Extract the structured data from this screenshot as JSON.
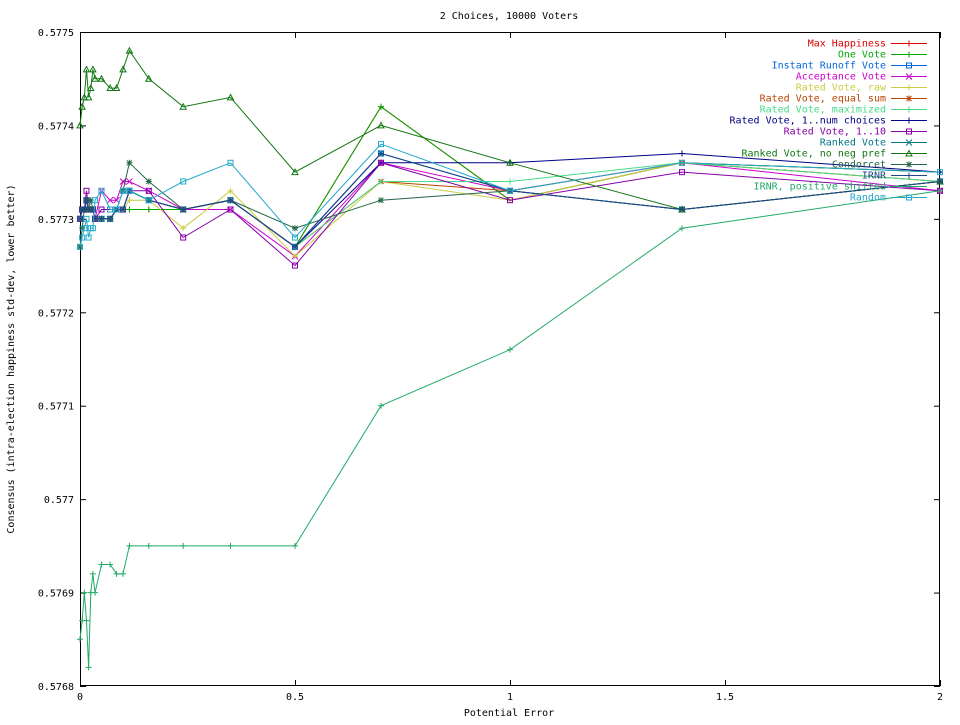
{
  "chart_data": {
    "type": "line",
    "title": "2 Choices, 10000 Voters",
    "xlabel": "Potential Error",
    "ylabel": "Consensus (intra-election happiness std-dev, lower better)",
    "xlim": [
      0,
      2
    ],
    "ylim": [
      0.5768,
      0.5775
    ],
    "x_ticks": [
      0,
      0.5,
      1,
      1.5,
      2
    ],
    "x_tick_labels": [
      "0",
      "0.5",
      "1",
      "1.5",
      "2"
    ],
    "y_ticks": [
      0.5768,
      0.5769,
      0.577,
      0.5771,
      0.5772,
      0.5773,
      0.5774,
      0.5775
    ],
    "y_tick_labels": [
      "0.5768",
      "0.5769",
      "0.577",
      "0.5771",
      "0.5772",
      "0.5773",
      "0.5774",
      "0.5775"
    ],
    "grid": false,
    "legend_position": "top-right",
    "x": [
      0,
      0.005,
      0.01,
      0.015,
      0.02,
      0.025,
      0.03,
      0.035,
      0.05,
      0.07,
      0.085,
      0.1,
      0.115,
      0.16,
      0.24,
      0.35,
      0.5,
      0.7,
      1.0,
      1.4,
      2.0
    ],
    "series": [
      {
        "name": "Max Happiness",
        "color": "#dd0000",
        "marker": "plus",
        "values": [
          0.5773,
          0.57731,
          0.57731,
          0.57732,
          0.57731,
          0.57731,
          0.57731,
          0.5773,
          0.5773,
          0.5773,
          0.57731,
          0.57731,
          0.57731,
          0.57731,
          0.57731,
          0.57732,
          0.57727,
          0.57742,
          0.57732,
          0.57736,
          0.57735
        ]
      },
      {
        "name": "One Vote",
        "color": "#00aa00",
        "marker": "plus",
        "values": [
          0.5773,
          0.57731,
          0.57731,
          0.57732,
          0.57731,
          0.57731,
          0.57731,
          0.5773,
          0.5773,
          0.5773,
          0.57731,
          0.57731,
          0.57731,
          0.57731,
          0.57731,
          0.57732,
          0.57727,
          0.57742,
          0.57732,
          0.57736,
          0.57735
        ]
      },
      {
        "name": "Instant Runoff Vote",
        "color": "#0066dd",
        "marker": "square",
        "values": [
          0.5773,
          0.57731,
          0.57731,
          0.57732,
          0.57731,
          0.57731,
          0.57731,
          0.5773,
          0.5773,
          0.5773,
          0.57731,
          0.57731,
          0.57733,
          0.57732,
          0.57731,
          0.57732,
          0.57727,
          0.57737,
          0.57733,
          0.57731,
          0.57734
        ]
      },
      {
        "name": "Acceptance Vote",
        "color": "#cc00cc",
        "marker": "cross",
        "values": [
          0.5773,
          0.57731,
          0.57731,
          0.57732,
          0.57731,
          0.57731,
          0.57731,
          0.5773,
          0.57733,
          0.57732,
          0.57732,
          0.57734,
          0.57734,
          0.57733,
          0.57731,
          0.57731,
          0.57726,
          0.57736,
          0.57733,
          0.57736,
          0.57733
        ]
      },
      {
        "name": "Rated Vote, raw",
        "color": "#cccc44",
        "marker": "plus",
        "values": [
          0.5773,
          0.57731,
          0.57731,
          0.57732,
          0.57731,
          0.57731,
          0.57731,
          0.5773,
          0.5773,
          0.5773,
          0.57731,
          0.57731,
          0.57732,
          0.57732,
          0.57729,
          0.57733,
          0.57726,
          0.57734,
          0.57732,
          0.57736,
          0.57734
        ]
      },
      {
        "name": "Rated Vote, equal sum",
        "color": "#bb4400",
        "marker": "star",
        "values": [
          0.5773,
          0.57731,
          0.57731,
          0.57732,
          0.57731,
          0.57731,
          0.57731,
          0.5773,
          0.5773,
          0.5773,
          0.57731,
          0.57731,
          0.57733,
          0.57732,
          0.57731,
          0.57732,
          0.57727,
          0.57734,
          0.57733,
          0.57736,
          0.57734
        ]
      },
      {
        "name": "Rated Vote, maximized",
        "color": "#44dd88",
        "marker": "plus",
        "values": [
          0.5773,
          0.57731,
          0.57731,
          0.57732,
          0.57731,
          0.57731,
          0.57731,
          0.5773,
          0.5773,
          0.5773,
          0.57731,
          0.57731,
          0.57733,
          0.57732,
          0.57731,
          0.57732,
          0.57727,
          0.57734,
          0.57734,
          0.57736,
          0.57734
        ]
      },
      {
        "name": "Rated Vote, 1..num choices",
        "color": "#000088",
        "marker": "plus",
        "values": [
          0.5773,
          0.57731,
          0.57731,
          0.57732,
          0.57731,
          0.57731,
          0.57731,
          0.5773,
          0.5773,
          0.5773,
          0.57731,
          0.57731,
          0.57733,
          0.57732,
          0.57731,
          0.57732,
          0.57727,
          0.57736,
          0.57736,
          0.57737,
          0.57735
        ]
      },
      {
        "name": "Rated Vote, 1..10",
        "color": "#8800aa",
        "marker": "square",
        "values": [
          0.5773,
          0.57731,
          0.57731,
          0.57733,
          0.57731,
          0.57731,
          0.57731,
          0.5773,
          0.57731,
          0.57731,
          0.57731,
          0.57731,
          0.57733,
          0.57733,
          0.57728,
          0.57731,
          0.57725,
          0.57736,
          0.57732,
          0.57735,
          0.57733
        ]
      },
      {
        "name": "Ranked Vote",
        "color": "#007788",
        "marker": "cross",
        "values": [
          0.5773,
          0.57731,
          0.57731,
          0.57732,
          0.57731,
          0.57731,
          0.57731,
          0.5773,
          0.5773,
          0.5773,
          0.57731,
          0.57731,
          0.57733,
          0.57732,
          0.57731,
          0.57732,
          0.57727,
          0.57737,
          0.57733,
          0.57731,
          0.57734
        ]
      },
      {
        "name": "Ranked Vote, no neg pref",
        "color": "#117711",
        "marker": "triangle",
        "values": [
          0.5774,
          0.57742,
          0.57743,
          0.57746,
          0.57743,
          0.57744,
          0.57746,
          0.57745,
          0.57745,
          0.57744,
          0.57744,
          0.57746,
          0.57748,
          0.57745,
          0.57742,
          0.57743,
          0.57735,
          0.5774,
          0.57736,
          0.57731,
          0.57734
        ]
      },
      {
        "name": "Condorcet",
        "color": "#226644",
        "marker": "star",
        "values": [
          0.57727,
          0.57729,
          0.57731,
          0.57732,
          0.57731,
          0.57732,
          0.57731,
          0.5773,
          0.5773,
          0.5773,
          0.57731,
          0.57733,
          0.57736,
          0.57734,
          0.57731,
          0.57732,
          0.57729,
          0.57732,
          0.57733,
          0.57731,
          0.57734
        ]
      },
      {
        "name": "IRNR",
        "color": "#224488",
        "marker": "plus",
        "values": [
          0.5773,
          0.57731,
          0.57731,
          0.57732,
          0.57731,
          0.57731,
          0.57731,
          0.5773,
          0.5773,
          0.5773,
          0.57731,
          0.57731,
          0.57733,
          0.57732,
          0.57731,
          0.57732,
          0.57727,
          0.57737,
          0.57733,
          0.57731,
          0.57734
        ]
      },
      {
        "name": "IRNR, positive shifted",
        "color": "#22aa66",
        "marker": "plus",
        "values": [
          0.57685,
          0.57687,
          0.5769,
          0.57687,
          0.57682,
          0.5769,
          0.57692,
          0.5769,
          0.57693,
          0.57693,
          0.57692,
          0.57692,
          0.57695,
          0.57695,
          0.57695,
          0.57695,
          0.57695,
          0.5771,
          0.57716,
          0.57729,
          0.57733
        ]
      },
      {
        "name": "Random",
        "color": "#22aacc",
        "marker": "square",
        "values": [
          0.57727,
          0.57728,
          0.57729,
          0.5773,
          0.57728,
          0.57729,
          0.57729,
          0.57732,
          0.57733,
          0.57731,
          0.57731,
          0.57733,
          0.57733,
          0.57732,
          0.57734,
          0.57736,
          0.57728,
          0.57738,
          0.57733,
          0.57736,
          0.57735
        ]
      }
    ]
  }
}
